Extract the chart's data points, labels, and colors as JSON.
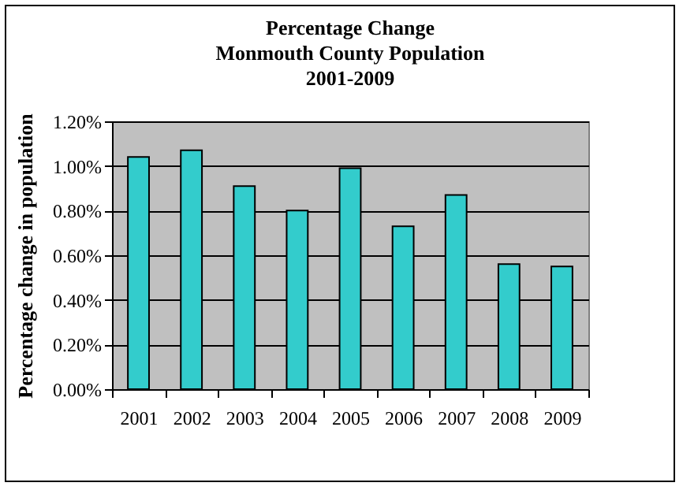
{
  "chart_data": {
    "type": "bar",
    "title": "Percentage Change\nMonmouth County Population\n2001-2009",
    "ylabel": "Percentage change in population",
    "categories": [
      "2001",
      "2002",
      "2003",
      "2004",
      "2005",
      "2006",
      "2007",
      "2008",
      "2009"
    ],
    "values": [
      1.04,
      1.07,
      0.91,
      0.8,
      0.99,
      0.73,
      0.87,
      0.56,
      0.55
    ],
    "color": "#33cccc",
    "ylim": [
      0,
      1.2
    ],
    "yticks": [
      {
        "value": 0,
        "label": "0.00%"
      },
      {
        "value": 0.2,
        "label": "0.20%"
      },
      {
        "value": 0.4,
        "label": "0.40%"
      },
      {
        "value": 0.6,
        "label": "0.60%"
      },
      {
        "value": 0.8,
        "label": "0.80%"
      },
      {
        "value": 1.0,
        "label": "1.00%"
      },
      {
        "value": 1.2,
        "label": "1.20%"
      }
    ],
    "grid": "y"
  }
}
